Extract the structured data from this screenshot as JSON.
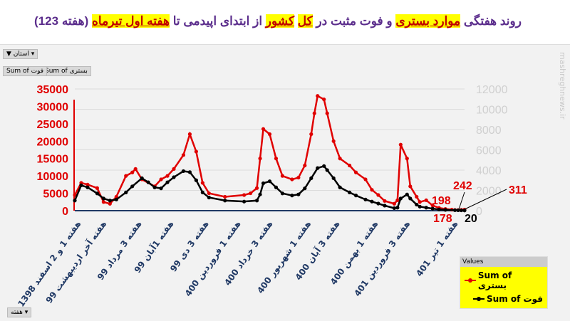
{
  "title": {
    "parts": [
      {
        "text": "روند هفتگی ",
        "hl": false
      },
      {
        "text": "موارد بستری",
        "hl": true
      },
      {
        "text": " و فوت مثبت در ",
        "hl": false
      },
      {
        "text": "کل",
        "hl": true
      },
      {
        "text": " ",
        "hl": false
      },
      {
        "text": "کشور",
        "hl": true
      },
      {
        "text": " از ابتدای اپیدمی تا ",
        "hl": false
      },
      {
        "text": "هفته اول تیرماه",
        "hl": true
      },
      {
        "text": " (هفته 123)",
        "hl": false
      }
    ]
  },
  "controls": {
    "province_filter": "استان",
    "field1": "Sum of بستری",
    "field2": "Sum of فوت",
    "week_filter": "هفته"
  },
  "watermark": "mashreghnews.ir",
  "colors": {
    "hospitalized": "#e00000",
    "deaths": "#000000",
    "axis": "#1f3864",
    "left_ticks": "#e00000",
    "right_ticks": "#d0d0d0"
  },
  "chart_data": {
    "type": "line",
    "title": "",
    "left_axis": {
      "ylim": [
        0,
        35000
      ],
      "ticks": [
        0,
        5000,
        10000,
        15000,
        20000,
        25000,
        30000,
        35000
      ]
    },
    "right_axis": {
      "ylim": [
        0,
        12000
      ],
      "ticks": [
        0,
        2000,
        4000,
        6000,
        8000,
        10000,
        12000
      ]
    },
    "xlim": [
      1,
      123
    ],
    "x_ticks": [
      {
        "week": 3,
        "label": "هفته 1 و 2 اسفند 1398"
      },
      {
        "week": 11,
        "label": "هفته آخر اردیبهشت 99"
      },
      {
        "week": 22,
        "label": "هفته 3 مرداد 99"
      },
      {
        "week": 32,
        "label": "هفته 1آبان 99"
      },
      {
        "week": 43,
        "label": "هفته 3 دی 99"
      },
      {
        "week": 53,
        "label": "هفته 1 فروردین 400"
      },
      {
        "week": 63,
        "label": "هفته 3 خرداد 400"
      },
      {
        "week": 75,
        "label": "هفته 1 شهریور 400"
      },
      {
        "week": 84,
        "label": "هفته 3 آبان 400"
      },
      {
        "week": 96,
        "label": "هفته 1 بهمن 400"
      },
      {
        "week": 106,
        "label": "هفته 3 فروردین 401"
      },
      {
        "week": 121,
        "label": "هفته 1 تیر 401"
      }
    ],
    "grid": true,
    "legend": {
      "title": "Values",
      "placement": "bottom-right"
    },
    "series": [
      {
        "name": "Sum of بستری",
        "axis": "left",
        "points": [
          [
            1,
            4500
          ],
          [
            3,
            8000
          ],
          [
            5,
            7500
          ],
          [
            8,
            6500
          ],
          [
            10,
            2500
          ],
          [
            12,
            2000
          ],
          [
            14,
            4000
          ],
          [
            17,
            10000
          ],
          [
            19,
            11000
          ],
          [
            20,
            12000
          ],
          [
            22,
            9000
          ],
          [
            26,
            7000
          ],
          [
            28,
            9000
          ],
          [
            30,
            10000
          ],
          [
            32,
            12000
          ],
          [
            35,
            16000
          ],
          [
            37,
            22000
          ],
          [
            39,
            17000
          ],
          [
            41,
            8000
          ],
          [
            43,
            5000
          ],
          [
            48,
            4000
          ],
          [
            54,
            4500
          ],
          [
            56,
            5000
          ],
          [
            58,
            6500
          ],
          [
            59,
            15000
          ],
          [
            60,
            23500
          ],
          [
            62,
            22000
          ],
          [
            64,
            15000
          ],
          [
            66,
            10000
          ],
          [
            69,
            9000
          ],
          [
            71,
            9500
          ],
          [
            73,
            13000
          ],
          [
            75,
            22000
          ],
          [
            76,
            28000
          ],
          [
            77,
            33000
          ],
          [
            79,
            32000
          ],
          [
            80,
            28000
          ],
          [
            82,
            20000
          ],
          [
            84,
            15000
          ],
          [
            87,
            13000
          ],
          [
            89,
            11000
          ],
          [
            92,
            9000
          ],
          [
            94,
            6000
          ],
          [
            96,
            4500
          ],
          [
            98,
            2800
          ],
          [
            101,
            2000
          ],
          [
            102,
            3000
          ],
          [
            103,
            19000
          ],
          [
            105,
            15000
          ],
          [
            106,
            7000
          ],
          [
            108,
            4000
          ],
          [
            109,
            2500
          ],
          [
            111,
            3000
          ],
          [
            113,
            1500
          ],
          [
            115,
            800
          ],
          [
            117,
            500
          ],
          [
            119,
            300
          ],
          [
            120,
            198
          ],
          [
            121,
            178
          ],
          [
            122,
            242
          ],
          [
            123,
            311
          ]
        ]
      },
      {
        "name": "Sum of فوت",
        "axis": "right",
        "points": [
          [
            1,
            1000
          ],
          [
            3,
            2500
          ],
          [
            5,
            2300
          ],
          [
            8,
            1700
          ],
          [
            10,
            1200
          ],
          [
            12,
            1000
          ],
          [
            14,
            1100
          ],
          [
            17,
            1800
          ],
          [
            19,
            2400
          ],
          [
            22,
            3200
          ],
          [
            24,
            2800
          ],
          [
            26,
            2300
          ],
          [
            28,
            2200
          ],
          [
            30,
            2800
          ],
          [
            32,
            3300
          ],
          [
            35,
            3900
          ],
          [
            37,
            3800
          ],
          [
            39,
            3000
          ],
          [
            41,
            1800
          ],
          [
            43,
            1300
          ],
          [
            48,
            1000
          ],
          [
            54,
            900
          ],
          [
            58,
            1000
          ],
          [
            59,
            1600
          ],
          [
            60,
            2700
          ],
          [
            62,
            2900
          ],
          [
            64,
            2300
          ],
          [
            66,
            1700
          ],
          [
            69,
            1500
          ],
          [
            71,
            1600
          ],
          [
            73,
            2200
          ],
          [
            75,
            3200
          ],
          [
            77,
            4200
          ],
          [
            79,
            4400
          ],
          [
            80,
            4000
          ],
          [
            82,
            3200
          ],
          [
            84,
            2300
          ],
          [
            87,
            1800
          ],
          [
            89,
            1500
          ],
          [
            92,
            1100
          ],
          [
            94,
            900
          ],
          [
            96,
            700
          ],
          [
            98,
            500
          ],
          [
            101,
            250
          ],
          [
            102,
            300
          ],
          [
            103,
            1200
          ],
          [
            105,
            1600
          ],
          [
            106,
            1200
          ],
          [
            108,
            600
          ],
          [
            109,
            400
          ],
          [
            111,
            300
          ],
          [
            113,
            200
          ],
          [
            115,
            120
          ],
          [
            117,
            80
          ],
          [
            120,
            50
          ],
          [
            121,
            40
          ],
          [
            122,
            30
          ],
          [
            123,
            20
          ]
        ]
      }
    ],
    "annotations": [
      {
        "text": "198"
      },
      {
        "text": "242"
      },
      {
        "text": "311"
      },
      {
        "text": "178"
      },
      {
        "text": "20"
      }
    ]
  }
}
